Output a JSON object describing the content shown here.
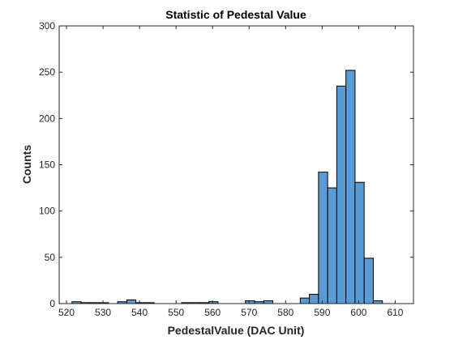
{
  "chart_data": {
    "type": "bar",
    "title": "Statistic of Pedestal Value",
    "xlabel": "PedestalValue (DAC Unit)",
    "ylabel": "Counts",
    "xlim": [
      518,
      615
    ],
    "ylim": [
      0,
      300
    ],
    "xticks": [
      520,
      530,
      540,
      550,
      560,
      570,
      580,
      590,
      600,
      610
    ],
    "yticks": [
      0,
      50,
      100,
      150,
      200,
      250,
      300
    ],
    "bar_color": "#5B9BD5",
    "bin_width": 2.5,
    "bins": [
      {
        "start": 521.5,
        "count": 2
      },
      {
        "start": 524.0,
        "count": 1
      },
      {
        "start": 526.5,
        "count": 1
      },
      {
        "start": 529.0,
        "count": 1
      },
      {
        "start": 534.0,
        "count": 2
      },
      {
        "start": 536.5,
        "count": 4
      },
      {
        "start": 539.0,
        "count": 1
      },
      {
        "start": 541.5,
        "count": 1
      },
      {
        "start": 551.5,
        "count": 1
      },
      {
        "start": 554.0,
        "count": 1
      },
      {
        "start": 556.5,
        "count": 1
      },
      {
        "start": 559.0,
        "count": 2
      },
      {
        "start": 569.0,
        "count": 3
      },
      {
        "start": 571.5,
        "count": 2
      },
      {
        "start": 574.0,
        "count": 3
      },
      {
        "start": 584.0,
        "count": 6
      },
      {
        "start": 586.5,
        "count": 10
      },
      {
        "start": 589.0,
        "count": 142
      },
      {
        "start": 591.5,
        "count": 125
      },
      {
        "start": 594.0,
        "count": 235
      },
      {
        "start": 596.5,
        "count": 252
      },
      {
        "start": 599.0,
        "count": 131
      },
      {
        "start": 601.5,
        "count": 49
      },
      {
        "start": 604.0,
        "count": 3
      }
    ],
    "grid": false,
    "legend": "none"
  }
}
